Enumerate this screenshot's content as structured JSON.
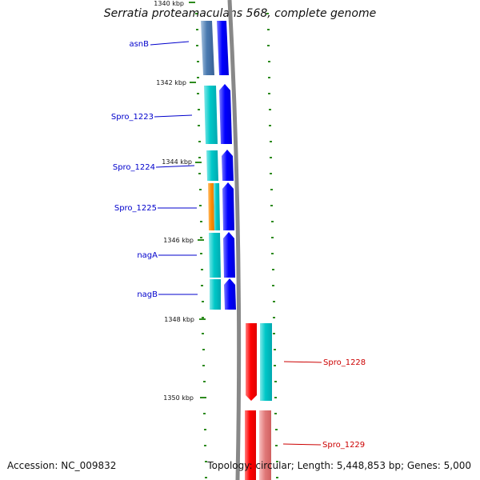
{
  "title": "Serratia proteamaculans 568, complete genome",
  "accession": "Accession: NC_009832",
  "topology": "Topology: circular; Length: 5,448,853 bp; Genes: 5,000",
  "colors": {
    "backbone": "#888888",
    "tick_mark": "#2e8b1e",
    "forward_label": "#0000cc",
    "reverse_label": "#cc0000",
    "gene_blue": "#0000ff",
    "gene_cyan": "#00c8c8",
    "gene_steel": "#4a7ab0",
    "gene_orange": "#ff8c00",
    "gene_red": "#ff0000",
    "gene_pink": "#e07878"
  },
  "ticks": [
    {
      "label": "1340 kbp"
    },
    {
      "label": "1342 kbp"
    },
    {
      "label": "1344 kbp"
    },
    {
      "label": "1346 kbp"
    },
    {
      "label": "1348 kbp"
    },
    {
      "label": "1350 kbp"
    }
  ],
  "genes": [
    {
      "name": "asnB",
      "strand": "forward"
    },
    {
      "name": "Spro_1223",
      "strand": "forward"
    },
    {
      "name": "Spro_1224",
      "strand": "forward"
    },
    {
      "name": "Spro_1225",
      "strand": "forward"
    },
    {
      "name": "nagA",
      "strand": "forward"
    },
    {
      "name": "nagB",
      "strand": "forward"
    },
    {
      "name": "Spro_1228",
      "strand": "reverse"
    },
    {
      "name": "Spro_1229",
      "strand": "reverse"
    }
  ]
}
